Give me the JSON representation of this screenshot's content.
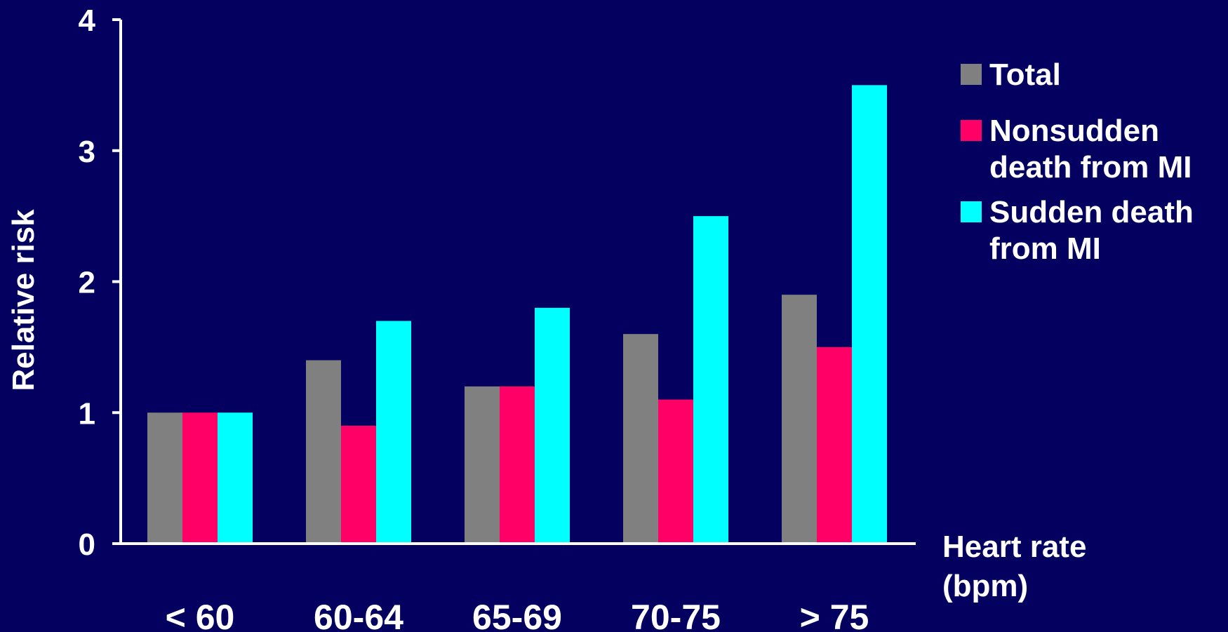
{
  "chart_data": {
    "type": "bar",
    "title": "",
    "xlabel": "Heart rate (bpm)",
    "xlabel_lines": [
      "Heart rate",
      "(bpm)"
    ],
    "ylabel": "Relative risk",
    "ylim": [
      0,
      4
    ],
    "yticks": [
      "0",
      "1",
      "2",
      "3",
      "4"
    ],
    "categories": [
      "< 60",
      "60-64",
      "65-69",
      "70-75",
      "> 75"
    ],
    "series": [
      {
        "name": "Total",
        "name_lines": [
          "Total"
        ],
        "color": "#808080",
        "values": [
          1.0,
          1.4,
          1.2,
          1.6,
          1.9
        ]
      },
      {
        "name": "Nonsudden death from MI",
        "name_lines": [
          "Nonsudden",
          "death from MI"
        ],
        "color": "#ff0066",
        "values": [
          1.0,
          0.9,
          1.2,
          1.1,
          1.5
        ]
      },
      {
        "name": "Sudden death from MI",
        "name_lines": [
          "Sudden death",
          "from MI"
        ],
        "color": "#00ffff",
        "values": [
          1.0,
          1.7,
          1.8,
          2.5,
          3.5
        ]
      }
    ],
    "legend_position": "right",
    "grid": false,
    "background_color": "#030060",
    "axis_color": "#ffffff"
  }
}
